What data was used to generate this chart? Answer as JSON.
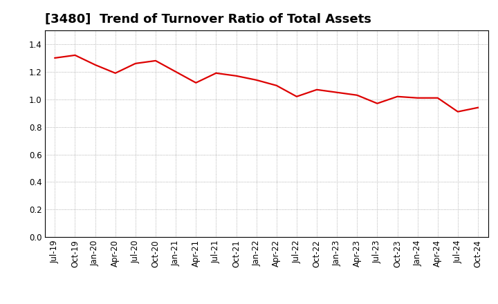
{
  "title": "[3480]  Trend of Turnover Ratio of Total Assets",
  "x_labels": [
    "Jul-19",
    "Oct-19",
    "Jan-20",
    "Apr-20",
    "Jul-20",
    "Oct-20",
    "Jan-21",
    "Apr-21",
    "Jul-21",
    "Oct-21",
    "Jan-22",
    "Apr-22",
    "Jul-22",
    "Oct-22",
    "Jan-23",
    "Apr-23",
    "Jul-23",
    "Oct-23",
    "Jan-24",
    "Apr-24",
    "Jul-24",
    "Oct-24"
  ],
  "y_values": [
    1.3,
    1.32,
    1.25,
    1.19,
    1.26,
    1.28,
    1.2,
    1.12,
    1.19,
    1.17,
    1.14,
    1.1,
    1.02,
    1.07,
    1.05,
    1.03,
    0.97,
    1.02,
    1.01,
    1.01,
    0.91,
    0.94
  ],
  "line_color": "#dd0000",
  "line_width": 1.6,
  "ylim": [
    0.0,
    1.5
  ],
  "yticks": [
    0.0,
    0.2,
    0.4,
    0.6,
    0.8,
    1.0,
    1.2,
    1.4
  ],
  "background_color": "#ffffff",
  "grid_color": "#999999",
  "title_fontsize": 13,
  "tick_fontsize": 8.5
}
